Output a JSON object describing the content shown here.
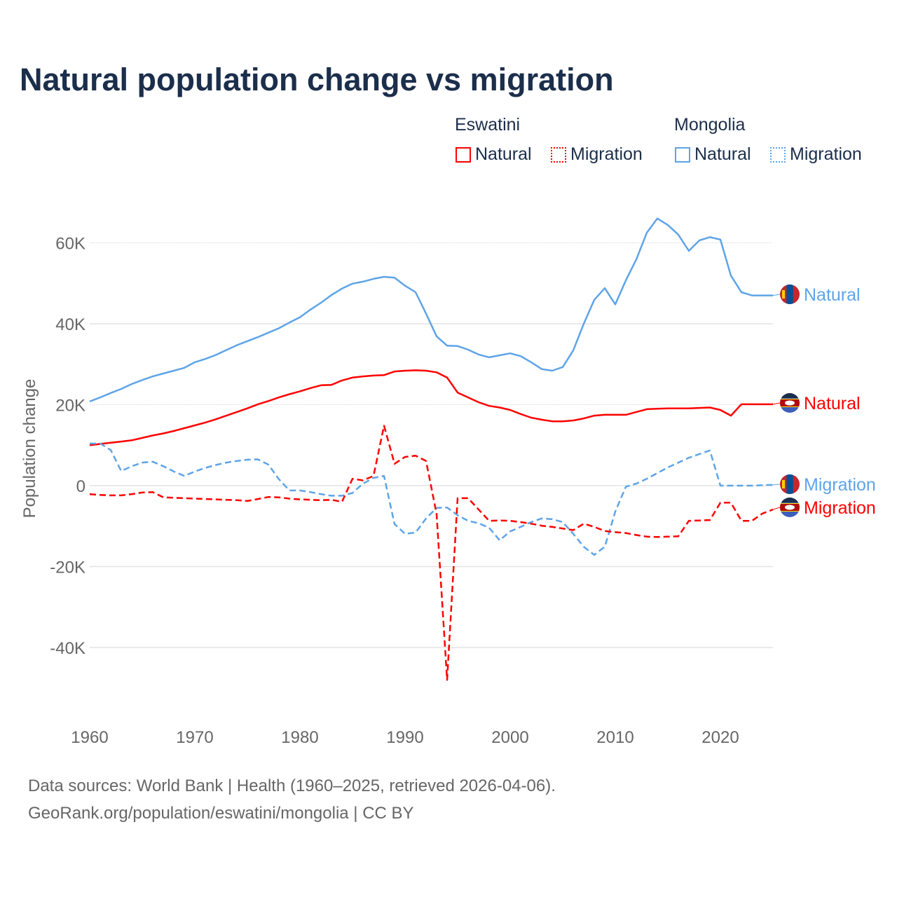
{
  "title": "Natural population change vs migration",
  "legend": {
    "groups": [
      {
        "name": "Eswatini",
        "items": [
          "Natural",
          "Migration"
        ]
      },
      {
        "name": "Mongolia",
        "items": [
          "Natural",
          "Migration"
        ]
      }
    ]
  },
  "footer": {
    "line1": "Data sources: World Bank | Health (1960–2025, retrieved 2026-04-06).",
    "line2": "GeoRank.org/population/eswatini/mongolia | CC BY"
  },
  "colors": {
    "eswatini": "#ff0000",
    "mongolia": "#5ea4e8"
  },
  "chart_data": {
    "type": "line",
    "title": "Natural population change vs migration",
    "xlabel": "",
    "ylabel": "Population change",
    "xlim": [
      1960,
      2025
    ],
    "ylim": [
      -55000,
      70000
    ],
    "y_ticks": [
      {
        "v": 60000,
        "label": "60K"
      },
      {
        "v": 40000,
        "label": "40K"
      },
      {
        "v": 20000,
        "label": "20K"
      },
      {
        "v": 0,
        "label": "0"
      },
      {
        "v": -20000,
        "label": "-20K"
      },
      {
        "v": -40000,
        "label": "-40K"
      }
    ],
    "x_ticks": [
      {
        "v": 1960,
        "label": "1960"
      },
      {
        "v": 1970,
        "label": "1970"
      },
      {
        "v": 1980,
        "label": "1980"
      },
      {
        "v": 1990,
        "label": "1990"
      },
      {
        "v": 2000,
        "label": "2000"
      },
      {
        "v": 2010,
        "label": "2010"
      },
      {
        "v": 2020,
        "label": "2020"
      }
    ],
    "grid": true,
    "legend_position": "top-right",
    "x_start": 1960,
    "series": [
      {
        "name": "Mongolia Natural",
        "country": "mongolia",
        "label": "Natural",
        "dashed": false,
        "values": [
          20.8,
          21.8,
          22.9,
          23.9,
          25.1,
          26.1,
          27.0,
          27.7,
          28.4,
          29.1,
          30.5,
          31.3,
          32.3,
          33.5,
          34.7,
          35.7,
          36.7,
          37.8,
          38.9,
          40.3,
          41.6,
          43.5,
          45.2,
          47.1,
          48.7,
          49.9,
          50.4,
          51.1,
          51.6,
          51.4,
          49.4,
          47.8,
          42.5,
          36.9,
          34.6,
          34.5,
          33.6,
          32.4,
          31.7,
          32.2,
          32.7,
          32.0,
          30.5,
          28.8,
          28.4,
          29.3,
          33.4,
          40.0,
          45.9,
          48.8,
          44.8,
          50.7,
          55.9,
          62.5,
          66.0,
          64.4,
          62.0,
          58.0,
          60.6,
          61.4,
          60.8,
          51.9,
          47.8,
          47.0,
          47.0,
          47.0
        ]
      },
      {
        "name": "Eswatini Natural",
        "country": "eswatini",
        "label": "Natural",
        "dashed": false,
        "values": [
          10.0,
          10.3,
          10.6,
          10.9,
          11.2,
          11.8,
          12.4,
          12.9,
          13.5,
          14.2,
          14.9,
          15.6,
          16.4,
          17.3,
          18.2,
          19.1,
          20.1,
          20.9,
          21.8,
          22.6,
          23.3,
          24.1,
          24.8,
          24.9,
          26.0,
          26.7,
          27.0,
          27.2,
          27.3,
          28.2,
          28.4,
          28.5,
          28.4,
          28.0,
          26.7,
          23.0,
          21.8,
          20.6,
          19.7,
          19.3,
          18.7,
          17.7,
          16.8,
          16.3,
          15.9,
          15.9,
          16.1,
          16.6,
          17.3,
          17.5,
          17.5,
          17.5,
          18.2,
          18.9,
          19.0,
          19.1,
          19.1,
          19.1,
          19.2,
          19.3,
          18.7,
          17.3,
          20.1,
          20.1,
          20.1,
          20.1
        ]
      },
      {
        "name": "Mongolia Migration",
        "country": "mongolia",
        "label": "Migration",
        "dashed": true,
        "values": [
          10.4,
          10.4,
          8.8,
          3.6,
          4.8,
          5.7,
          5.9,
          4.8,
          3.5,
          2.4,
          3.5,
          4.4,
          5.1,
          5.7,
          6.1,
          6.4,
          6.5,
          5.2,
          1.6,
          -1.2,
          -1.2,
          -1.6,
          -2.1,
          -2.5,
          -2.5,
          -1.8,
          0.5,
          1.9,
          2.4,
          -9.5,
          -11.9,
          -11.6,
          -8.1,
          -5.5,
          -5.4,
          -7.3,
          -8.7,
          -9.3,
          -10.4,
          -13.5,
          -11.3,
          -10.2,
          -9.0,
          -8.1,
          -8.3,
          -9.0,
          -11.9,
          -15.1,
          -17.1,
          -15.1,
          -6.4,
          -0.3,
          0.5,
          1.7,
          3.1,
          4.5,
          5.7,
          6.9,
          7.8,
          8.7,
          0.0,
          0.0,
          0.0,
          0.0,
          0.1,
          0.2
        ]
      },
      {
        "name": "Eswatini Migration",
        "country": "eswatini",
        "label": "Migration",
        "dashed": true,
        "values": [
          -2.1,
          -2.3,
          -2.4,
          -2.4,
          -2.1,
          -1.7,
          -1.6,
          -2.9,
          -3.0,
          -3.1,
          -3.2,
          -3.3,
          -3.4,
          -3.5,
          -3.6,
          -3.8,
          -3.3,
          -2.8,
          -2.9,
          -3.2,
          -3.4,
          -3.5,
          -3.6,
          -3.5,
          -4.0,
          1.7,
          1.3,
          2.4,
          14.8,
          5.4,
          7.1,
          7.4,
          6.1,
          -7.0,
          -48.0,
          -3.1,
          -3.1,
          -5.9,
          -8.7,
          -8.6,
          -8.7,
          -9.0,
          -9.4,
          -9.9,
          -10.2,
          -10.6,
          -11.0,
          -9.4,
          -10.2,
          -11.2,
          -11.5,
          -11.7,
          -12.2,
          -12.6,
          -12.7,
          -12.6,
          -12.5,
          -8.7,
          -8.6,
          -8.5,
          -4.2,
          -4.2,
          -8.7,
          -8.7,
          -6.9,
          -5.9
        ]
      }
    ],
    "values_unit": "thousands"
  }
}
